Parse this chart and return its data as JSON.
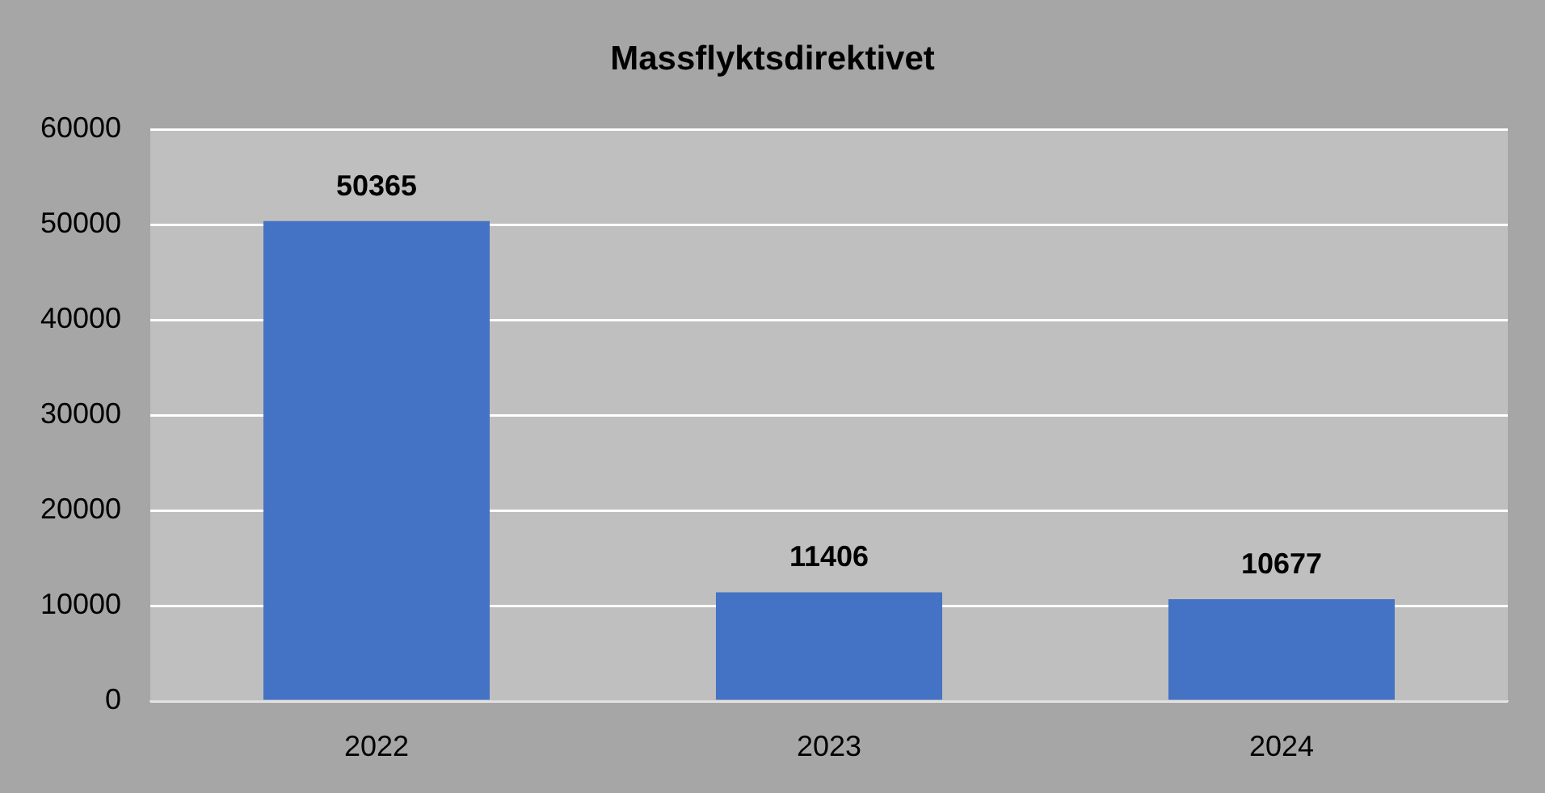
{
  "chart_data": {
    "type": "bar",
    "title": "Massflyktsdirektivet",
    "categories": [
      "2022",
      "2023",
      "2024"
    ],
    "values": [
      50365,
      11406,
      10677
    ],
    "color": "#4472c4",
    "ylim": [
      0,
      60000
    ],
    "yticks": [
      0,
      10000,
      20000,
      30000,
      40000,
      50000,
      60000
    ],
    "grid": "y",
    "data_labels": true,
    "legend": false
  }
}
